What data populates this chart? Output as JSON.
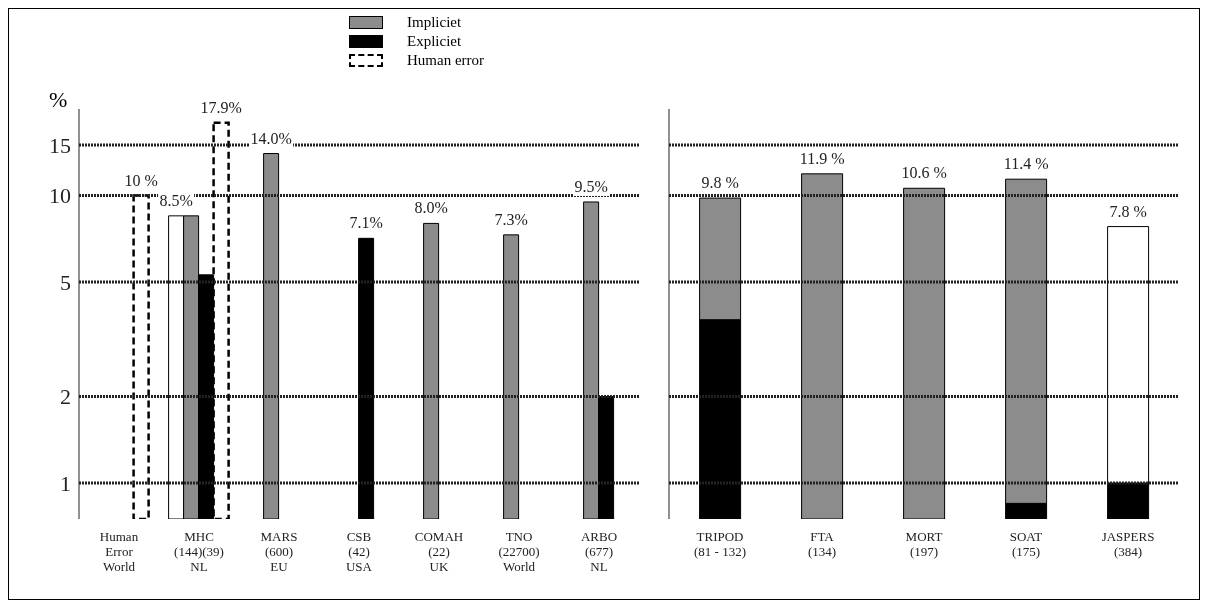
{
  "chart_data": [
    {
      "type": "bar",
      "ylabel": "%",
      "log": true,
      "ylim": [
        0.75,
        20
      ],
      "yticks": [
        1,
        2,
        5,
        10,
        15
      ],
      "grid": "y",
      "legend": "top",
      "categories": [
        "Human\nError\nWorld",
        "MHC\n(144)(39)\nNL",
        "MARS\n(600)\nEU",
        "CSB\n(42)\nUSA",
        "COMAH\n(22)\nUK",
        "TNO\n(22700)\nWorld",
        "ARBO\n(677)\nNL"
      ],
      "series": [
        {
          "color": "#ffffff",
          "values": [
            null,
            8.5,
            null,
            null,
            null,
            null,
            null
          ],
          "value_labels": [
            null,
            "8.5%",
            null,
            null,
            null,
            null,
            null
          ]
        },
        {
          "name": "Impliciet",
          "color": "#8c8c8c",
          "values": [
            null,
            8.5,
            14.0,
            null,
            8.0,
            7.3,
            9.5
          ],
          "value_labels": [
            null,
            null,
            "14.0%",
            null,
            "8.0%",
            "7.3%",
            "9.5%"
          ]
        },
        {
          "name": "Expliciet",
          "color": "#000000",
          "values": [
            null,
            5.3,
            null,
            7.1,
            null,
            null,
            2.0
          ],
          "value_labels": [
            null,
            null,
            null,
            "7.1%",
            null,
            null,
            null
          ]
        },
        {
          "name": "Human error",
          "color": "#000000",
          "line_style": "dashed",
          "values": [
            10,
            17.9,
            null,
            null,
            null,
            null,
            null
          ],
          "value_labels": [
            "10 %",
            "17.9%",
            null,
            null,
            null,
            null,
            null
          ]
        }
      ]
    },
    {
      "type": "bar",
      "log": true,
      "stacked": true,
      "ylim": [
        0.75,
        20
      ],
      "yticks": [
        1,
        2,
        5,
        10,
        15
      ],
      "grid": "y",
      "tick_labels": "x",
      "categories": [
        "TRIPOD\n(81 - 132)",
        "FTA\n(134)",
        "MORT\n(197)",
        "SOAT\n(175)",
        "JASPERS\n(384)"
      ],
      "totals": [
        "9.8 %",
        "11.9 %",
        "10.6 %",
        "11.4 %",
        "7.8 %"
      ],
      "series": [
        {
          "color": "#000000",
          "values": [
            3.7,
            null,
            null,
            0.85,
            1.0
          ]
        },
        {
          "color": "#8c8c8c",
          "values": [
            6.1,
            11.9,
            10.6,
            10.55,
            null
          ]
        },
        {
          "color": "#ffffff",
          "values": [
            null,
            null,
            null,
            null,
            6.8
          ]
        }
      ]
    }
  ]
}
